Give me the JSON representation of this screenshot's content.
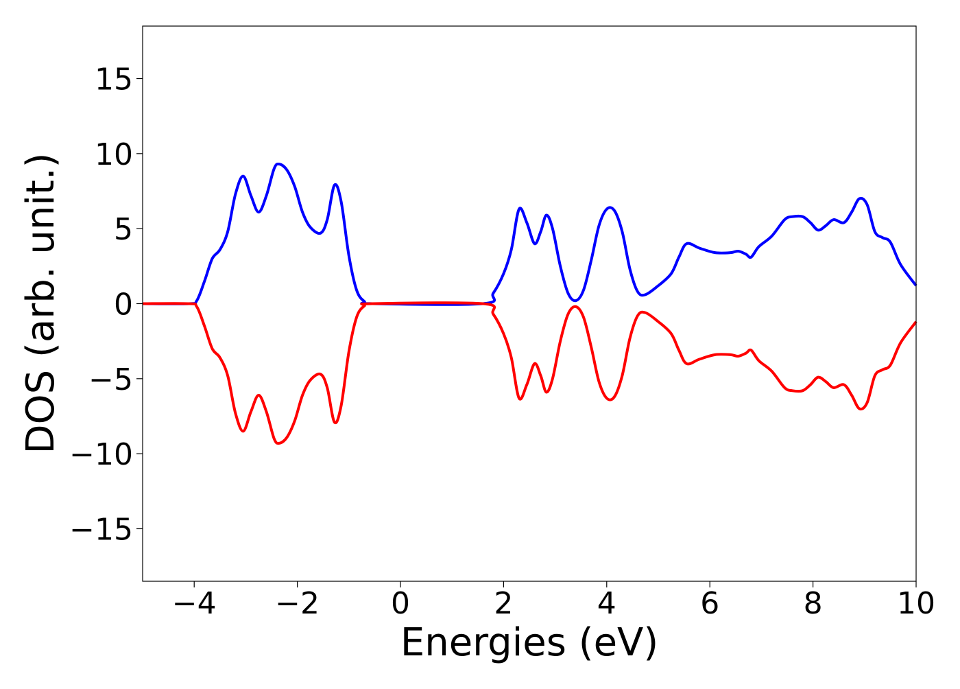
{
  "chart_data": {
    "type": "line",
    "xlabel": "Energies (eV)",
    "ylabel": "DOS (arb. unit.)",
    "xlim": [
      -5,
      10
    ],
    "ylim": [
      -18.5,
      18.5
    ],
    "xticks": [
      -4,
      -2,
      0,
      2,
      4,
      6,
      8,
      10
    ],
    "xtick_labels": [
      "−4",
      "−2",
      "0",
      "2",
      "4",
      "6",
      "8",
      "10"
    ],
    "yticks": [
      -15,
      -10,
      -5,
      0,
      5,
      10,
      15
    ],
    "ytick_labels": [
      "−15",
      "−10",
      "−5",
      "0",
      "5",
      "10",
      "15"
    ],
    "grid": false,
    "series": [
      {
        "color": "#0000ff",
        "points": [
          [
            -5.0,
            0.0
          ],
          [
            -4.1,
            0.0
          ],
          [
            -3.95,
            0.2
          ],
          [
            -3.8,
            1.5
          ],
          [
            -3.65,
            3.0
          ],
          [
            -3.5,
            3.6
          ],
          [
            -3.35,
            4.8
          ],
          [
            -3.2,
            7.3
          ],
          [
            -3.05,
            8.5
          ],
          [
            -2.9,
            7.2
          ],
          [
            -2.75,
            6.1
          ],
          [
            -2.6,
            7.2
          ],
          [
            -2.45,
            9.0
          ],
          [
            -2.35,
            9.3
          ],
          [
            -2.2,
            8.9
          ],
          [
            -2.05,
            7.8
          ],
          [
            -1.9,
            6.1
          ],
          [
            -1.75,
            5.1
          ],
          [
            -1.55,
            4.7
          ],
          [
            -1.42,
            5.6
          ],
          [
            -1.28,
            7.9
          ],
          [
            -1.15,
            6.8
          ],
          [
            -1.0,
            3.2
          ],
          [
            -0.85,
            0.9
          ],
          [
            -0.7,
            0.15
          ],
          [
            -0.55,
            0.0
          ],
          [
            1.6,
            0.0
          ],
          [
            1.8,
            0.7
          ],
          [
            2.0,
            2.0
          ],
          [
            2.15,
            3.6
          ],
          [
            2.3,
            6.3
          ],
          [
            2.45,
            5.4
          ],
          [
            2.6,
            4.0
          ],
          [
            2.72,
            4.8
          ],
          [
            2.83,
            5.9
          ],
          [
            2.95,
            5.0
          ],
          [
            3.1,
            2.5
          ],
          [
            3.25,
            0.7
          ],
          [
            3.4,
            0.2
          ],
          [
            3.55,
            0.9
          ],
          [
            3.7,
            2.9
          ],
          [
            3.85,
            5.2
          ],
          [
            4.0,
            6.3
          ],
          [
            4.15,
            6.2
          ],
          [
            4.3,
            4.8
          ],
          [
            4.45,
            2.3
          ],
          [
            4.6,
            0.8
          ],
          [
            4.75,
            0.6
          ],
          [
            5.0,
            1.2
          ],
          [
            5.25,
            2.0
          ],
          [
            5.4,
            3.1
          ],
          [
            5.55,
            4.0
          ],
          [
            5.8,
            3.7
          ],
          [
            6.1,
            3.4
          ],
          [
            6.4,
            3.4
          ],
          [
            6.55,
            3.5
          ],
          [
            6.7,
            3.3
          ],
          [
            6.8,
            3.1
          ],
          [
            6.95,
            3.8
          ],
          [
            7.2,
            4.5
          ],
          [
            7.45,
            5.6
          ],
          [
            7.6,
            5.8
          ],
          [
            7.8,
            5.8
          ],
          [
            7.95,
            5.4
          ],
          [
            8.1,
            4.9
          ],
          [
            8.25,
            5.2
          ],
          [
            8.4,
            5.6
          ],
          [
            8.6,
            5.4
          ],
          [
            8.75,
            6.1
          ],
          [
            8.9,
            7.0
          ],
          [
            9.05,
            6.6
          ],
          [
            9.2,
            4.8
          ],
          [
            9.35,
            4.4
          ],
          [
            9.5,
            4.1
          ],
          [
            9.7,
            2.6
          ],
          [
            10.0,
            1.2
          ]
        ]
      },
      {
        "color": "#ff0000",
        "mirror_of": 0
      }
    ]
  }
}
